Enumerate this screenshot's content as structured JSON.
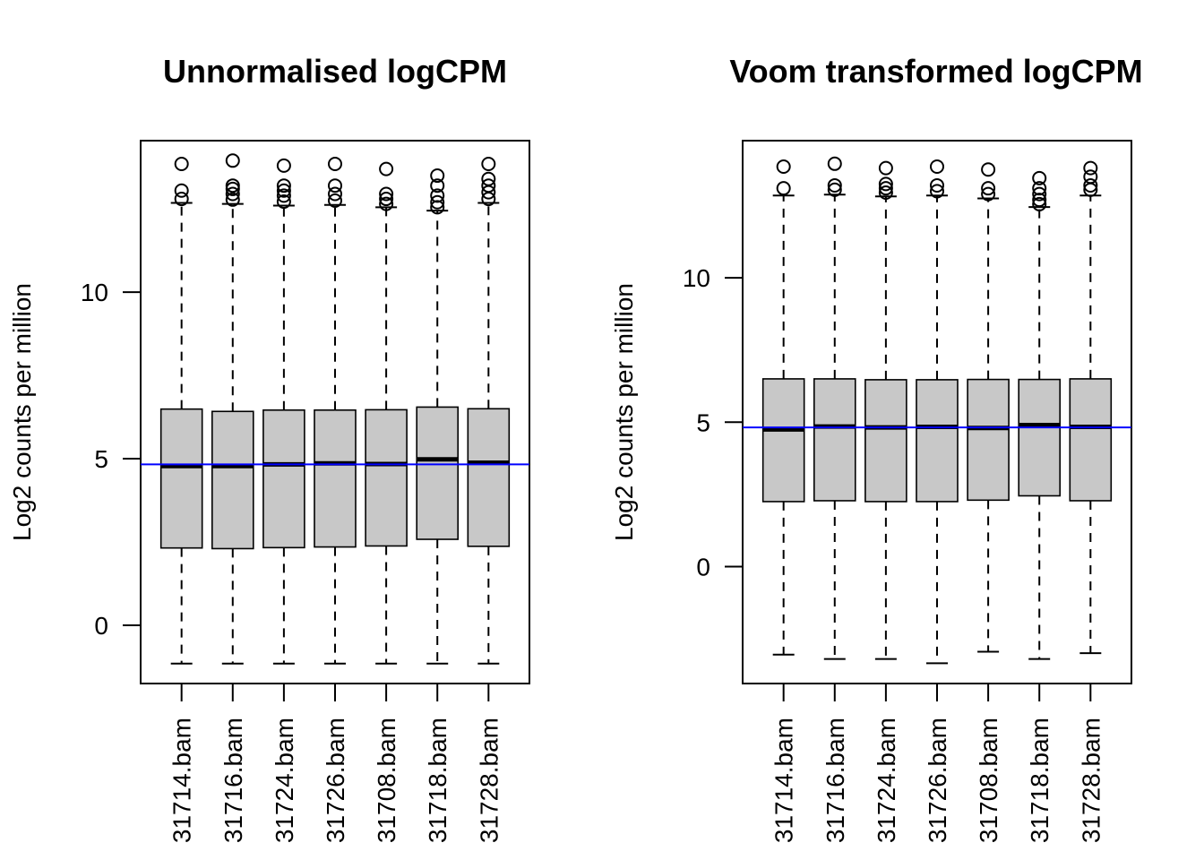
{
  "colors": {
    "box_fill": "#c8c8c8",
    "reference_line": "#0000ff",
    "ink": "#000000",
    "background": "#ffffff"
  },
  "chart_data": [
    {
      "type": "boxplot",
      "title": "Unnormalised logCPM",
      "xlabel": "",
      "ylabel": "Log2 counts per million",
      "yticks": [
        0,
        5,
        10
      ],
      "ylim": [
        -1.75,
        14.55
      ],
      "reference_line": 4.83,
      "categories": [
        "31714.bam",
        "31716.bam",
        "31724.bam",
        "31726.bam",
        "31708.bam",
        "31718.bam",
        "31728.bam"
      ],
      "boxes": [
        {
          "whisker_low": -1.15,
          "q1": 2.32,
          "median": 4.78,
          "q3": 6.49,
          "whisker_high": 12.68,
          "outliers": [
            12.8,
            13.05,
            13.85
          ]
        },
        {
          "whisker_low": -1.15,
          "q1": 2.3,
          "median": 4.78,
          "q3": 6.42,
          "whisker_high": 12.65,
          "outliers": [
            12.78,
            12.95,
            13.1,
            13.2,
            13.95
          ]
        },
        {
          "whisker_low": -1.15,
          "q1": 2.33,
          "median": 4.83,
          "q3": 6.46,
          "whisker_high": 12.6,
          "outliers": [
            12.72,
            12.9,
            13.05,
            13.2,
            13.8
          ]
        },
        {
          "whisker_low": -1.15,
          "q1": 2.35,
          "median": 4.86,
          "q3": 6.46,
          "whisker_high": 12.62,
          "outliers": [
            12.75,
            12.95,
            13.2,
            13.85
          ]
        },
        {
          "whisker_low": -1.15,
          "q1": 2.38,
          "median": 4.84,
          "q3": 6.47,
          "whisker_high": 12.55,
          "outliers": [
            12.65,
            12.8,
            12.95,
            13.7
          ]
        },
        {
          "whisker_low": -1.15,
          "q1": 2.58,
          "median": 4.98,
          "q3": 6.55,
          "whisker_high": 12.45,
          "outliers": [
            12.55,
            12.7,
            12.9,
            13.2,
            13.5
          ]
        },
        {
          "whisker_low": -1.15,
          "q1": 2.37,
          "median": 4.88,
          "q3": 6.5,
          "whisker_high": 12.68,
          "outliers": [
            12.8,
            13.0,
            13.2,
            13.4,
            13.85
          ]
        }
      ]
    },
    {
      "type": "boxplot",
      "title": "Voom transformed logCPM",
      "xlabel": "",
      "ylabel": "Log2 counts per million",
      "yticks": [
        0,
        5,
        10
      ],
      "ylim": [
        -4.05,
        14.75
      ],
      "reference_line": 4.82,
      "categories": [
        "31714.bam",
        "31716.bam",
        "31724.bam",
        "31726.bam",
        "31708.bam",
        "31718.bam",
        "31728.bam"
      ],
      "boxes": [
        {
          "whisker_low": -3.05,
          "q1": 2.25,
          "median": 4.75,
          "q3": 6.5,
          "whisker_high": 12.85,
          "outliers": [
            13.1,
            13.85
          ]
        },
        {
          "whisker_low": -3.2,
          "q1": 2.28,
          "median": 4.85,
          "q3": 6.5,
          "whisker_high": 12.88,
          "outliers": [
            13.05,
            13.2,
            13.95
          ]
        },
        {
          "whisker_low": -3.2,
          "q1": 2.25,
          "median": 4.82,
          "q3": 6.47,
          "whisker_high": 12.82,
          "outliers": [
            12.95,
            13.1,
            13.25,
            13.8
          ]
        },
        {
          "whisker_low": -3.35,
          "q1": 2.25,
          "median": 4.84,
          "q3": 6.47,
          "whisker_high": 12.85,
          "outliers": [
            13.0,
            13.2,
            13.85
          ]
        },
        {
          "whisker_low": -2.95,
          "q1": 2.3,
          "median": 4.8,
          "q3": 6.48,
          "whisker_high": 12.75,
          "outliers": [
            12.9,
            13.1,
            13.75
          ]
        },
        {
          "whisker_low": -3.2,
          "q1": 2.45,
          "median": 4.9,
          "q3": 6.48,
          "whisker_high": 12.45,
          "outliers": [
            12.55,
            12.7,
            12.9,
            13.1,
            13.45
          ]
        },
        {
          "whisker_low": -3.0,
          "q1": 2.28,
          "median": 4.84,
          "q3": 6.5,
          "whisker_high": 12.85,
          "outliers": [
            13.05,
            13.2,
            13.5,
            13.8
          ]
        }
      ]
    }
  ]
}
